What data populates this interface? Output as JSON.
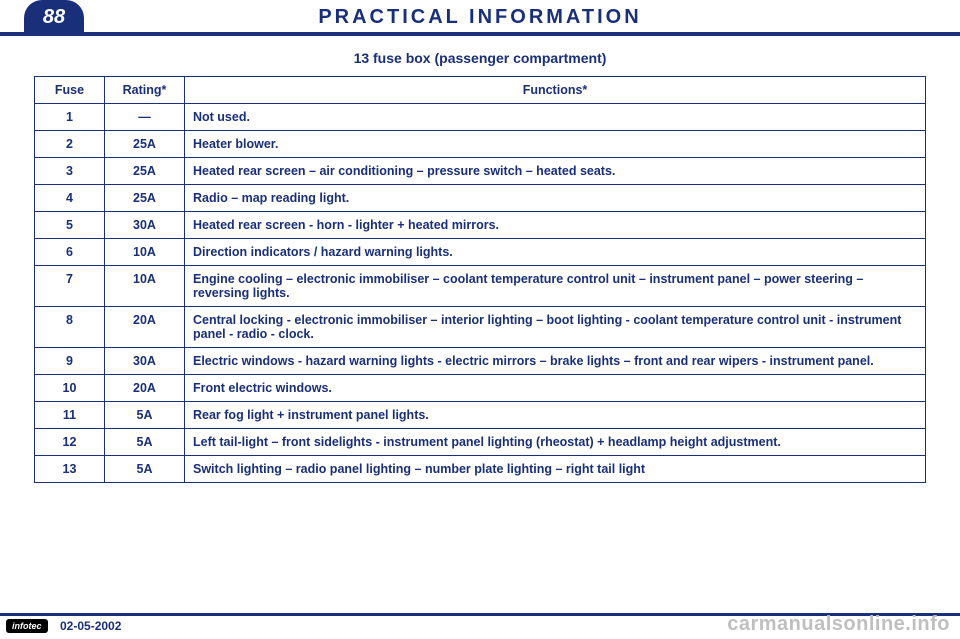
{
  "page_number": "88",
  "header_title": "PRACTICAL INFORMATION",
  "section_title": "13 fuse box (passenger compartment)",
  "colors": {
    "primary": "#1a2f7a",
    "background": "#ffffff",
    "watermark": "#bfbfbf",
    "badge_bg": "#000000",
    "badge_fg": "#ffffff"
  },
  "table": {
    "headers": {
      "fuse": "Fuse",
      "rating": "Rating*",
      "functions": "Functions*"
    },
    "rows": [
      {
        "fuse": "1",
        "rating": "—",
        "func": "Not used."
      },
      {
        "fuse": "2",
        "rating": "25A",
        "func": "Heater blower."
      },
      {
        "fuse": "3",
        "rating": "25A",
        "func": "Heated rear screen – air conditioning – pressure switch – heated seats."
      },
      {
        "fuse": "4",
        "rating": "25A",
        "func": "Radio – map reading light."
      },
      {
        "fuse": "5",
        "rating": "30A",
        "func": "Heated rear screen - horn - lighter + heated mirrors."
      },
      {
        "fuse": "6",
        "rating": "10A",
        "func": "Direction indicators / hazard warning lights."
      },
      {
        "fuse": "7",
        "rating": "10A",
        "func": "Engine cooling – electronic immobiliser – coolant temperature control unit – instrument panel – power steering – reversing lights."
      },
      {
        "fuse": "8",
        "rating": "20A",
        "func": "Central locking - electronic immobiliser – interior lighting – boot lighting - coolant temperature control unit - instrument panel - radio - clock."
      },
      {
        "fuse": "9",
        "rating": "30A",
        "func": "Electric windows - hazard warning lights - electric mirrors – brake lights – front and rear wipers - instrument panel."
      },
      {
        "fuse": "10",
        "rating": "20A",
        "func": "Front electric windows."
      },
      {
        "fuse": "11",
        "rating": "5A",
        "func": "Rear fog light + instrument panel lights."
      },
      {
        "fuse": "12",
        "rating": "5A",
        "func": "Left tail-light – front sidelights - instrument panel lighting (rheostat) + headlamp height adjustment."
      },
      {
        "fuse": "13",
        "rating": "5A",
        "func": "Switch lighting – radio panel lighting – number plate lighting – right tail light"
      }
    ]
  },
  "footer": {
    "badge": "infotec",
    "date": "02-05-2002"
  },
  "watermark": "carmanualsonline.info"
}
